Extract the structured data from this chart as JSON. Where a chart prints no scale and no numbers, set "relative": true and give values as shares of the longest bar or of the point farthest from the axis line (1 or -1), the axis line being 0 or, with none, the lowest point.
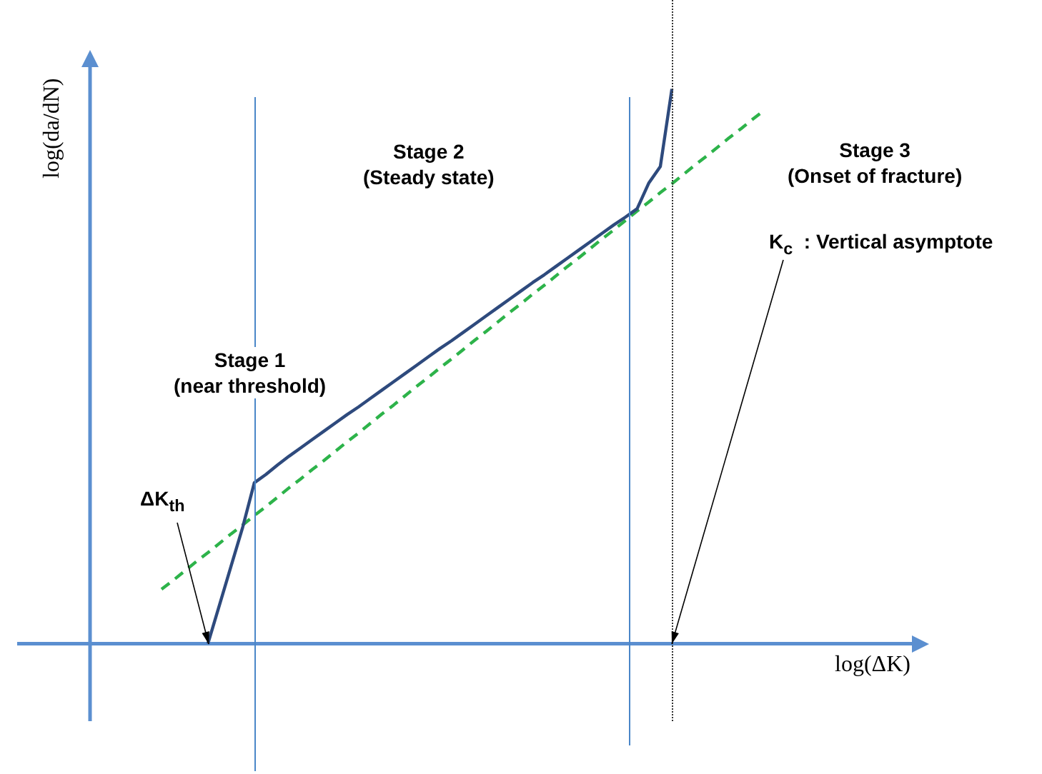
{
  "chart_data": {
    "type": "line",
    "relative": true,
    "tick_labels": false,
    "marker": "none",
    "xlabel": "log(ΔK)",
    "ylabel": "log(da/dN)",
    "categories": [
      null,
      null,
      null,
      null,
      null,
      null,
      null,
      null,
      null,
      null,
      null,
      null,
      null,
      null,
      null,
      null,
      null,
      null,
      null,
      null,
      null,
      null,
      null,
      null,
      null,
      null,
      null,
      null,
      null,
      null,
      null,
      null,
      null,
      null,
      null,
      null,
      null,
      null,
      null,
      null,
      null,
      null,
      null,
      null,
      null,
      null,
      null,
      null,
      null,
      null,
      null,
      null,
      null
    ],
    "series": [
      {
        "type": "line",
        "color": "#2e4a7d",
        "line_style": "solid",
        "values": [
          null,
          null,
          null,
          null,
          0,
          0.07,
          0.14,
          0.21,
          0.29,
          0.305,
          0.322,
          0.338,
          0.353,
          0.368,
          0.383,
          0.398,
          0.413,
          0.427,
          0.442,
          0.457,
          0.472,
          0.487,
          0.502,
          0.517,
          0.532,
          0.546,
          0.561,
          0.576,
          0.591,
          0.606,
          0.621,
          0.636,
          0.651,
          0.665,
          0.68,
          0.695,
          0.71,
          0.725,
          0.74,
          0.755,
          0.769,
          0.784,
          0.83,
          0.86,
          1.0,
          null,
          null,
          null,
          null,
          null,
          null,
          null,
          null
        ]
      },
      {
        "type": "line",
        "color": "#2db34a",
        "line_style": "dashed",
        "values": [
          0.098,
          0.114,
          0.131,
          0.148,
          0.164,
          0.181,
          0.198,
          0.214,
          0.231,
          0.247,
          0.264,
          0.281,
          0.297,
          0.314,
          0.33,
          0.347,
          0.364,
          0.38,
          0.397,
          0.414,
          0.43,
          0.447,
          0.464,
          0.48,
          0.497,
          0.513,
          0.53,
          0.547,
          0.563,
          0.58,
          0.597,
          0.613,
          0.63,
          0.646,
          0.663,
          0.68,
          0.696,
          0.713,
          0.73,
          0.746,
          0.763,
          0.78,
          0.796,
          0.813,
          0.829,
          0.846,
          0.863,
          0.879,
          0.896,
          0.913,
          0.929,
          0.946,
          0.962
        ]
      }
    ],
    "annotations": [
      "Stage 1\n(near threshold)",
      "Stage 2\n(Steady state)",
      "Stage 3\n(Onset of fracture)",
      "ΔK$_{th}$",
      "K$_{c}$  : Vertical asymptote"
    ]
  }
}
